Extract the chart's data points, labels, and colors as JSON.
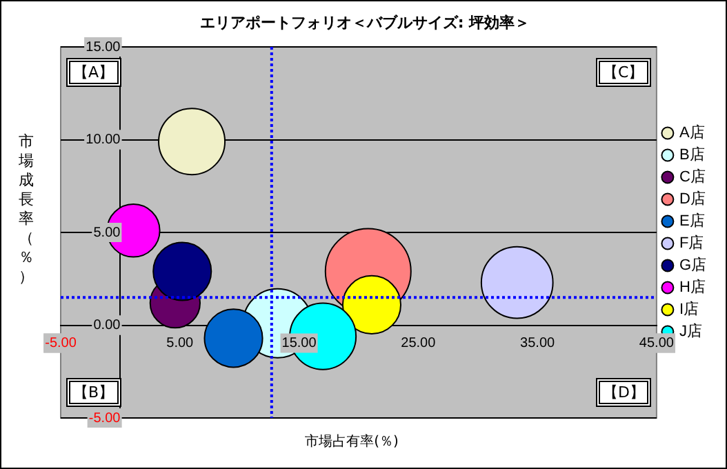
{
  "chart_data": {
    "type": "bubble",
    "title": "エリアポートフォリオ＜バブルサイズ: 坪効率＞",
    "xlabel": "市場占有率(％)",
    "ylabel": "市場成長率（％）",
    "xlim": [
      -5,
      45
    ],
    "xticks": [
      {
        "value": -5,
        "label": "-5.00"
      },
      {
        "value": 5,
        "label": "5.00"
      },
      {
        "value": 15,
        "label": "15.00"
      },
      {
        "value": 25,
        "label": "25.00"
      },
      {
        "value": 35,
        "label": "35.00"
      },
      {
        "value": 45,
        "label": "45.00"
      }
    ],
    "ylim": [
      -5,
      15
    ],
    "yticks": [
      {
        "value": -5,
        "label": "-5.00"
      },
      {
        "value": 0,
        "label": "0.00"
      },
      {
        "value": 5,
        "label": "5.00"
      },
      {
        "value": 10,
        "label": "10.00"
      },
      {
        "value": 15,
        "label": "15.00"
      }
    ],
    "grid": "y",
    "legend": "right",
    "series": [
      {
        "name": "A店",
        "color": "#f0f0c8",
        "x": [
          6.0
        ],
        "values": [
          9.9
        ],
        "sizes": [
          0.6
        ]
      },
      {
        "name": "B店",
        "color": "#ccffff",
        "x": [
          13.2
        ],
        "values": [
          0.1
        ],
        "sizes": [
          0.65
        ]
      },
      {
        "name": "C店",
        "color": "#660066",
        "x": [
          4.6
        ],
        "values": [
          1.2
        ],
        "sizes": [
          0.34
        ]
      },
      {
        "name": "D店",
        "color": "#ff8080",
        "x": [
          20.8
        ],
        "values": [
          2.9
        ],
        "sizes": [
          1
        ]
      },
      {
        "name": "E店",
        "color": "#0066cc",
        "x": [
          9.5
        ],
        "values": [
          -0.7
        ],
        "sizes": [
          0.46
        ]
      },
      {
        "name": "F店",
        "color": "#ccccff",
        "x": [
          33.3
        ],
        "values": [
          2.3
        ],
        "sizes": [
          0.7
        ]
      },
      {
        "name": "G店",
        "color": "#000080",
        "x": [
          5.2
        ],
        "values": [
          2.9
        ],
        "sizes": [
          0.46
        ]
      },
      {
        "name": "H店",
        "color": "#ff00ff",
        "x": [
          1.1
        ],
        "values": [
          5.1
        ],
        "sizes": [
          0.38
        ]
      },
      {
        "name": "I店",
        "color": "#ffff00",
        "x": [
          21.1
        ],
        "values": [
          1.1
        ],
        "sizes": [
          0.46
        ]
      },
      {
        "name": "J店",
        "color": "#00ffff",
        "x": [
          17.0
        ],
        "values": [
          -0.6
        ],
        "sizes": [
          0.6
        ]
      }
    ],
    "ref_lines": [
      {
        "axis": "x",
        "value": 12.7,
        "color": "#0000ff",
        "line_style": "dotted"
      },
      {
        "axis": "y",
        "value": 1.5,
        "color": "#0000ff",
        "line_style": "dotted"
      }
    ],
    "annotations": [
      "【A】",
      "【B】",
      "【C】",
      "【D】"
    ]
  }
}
